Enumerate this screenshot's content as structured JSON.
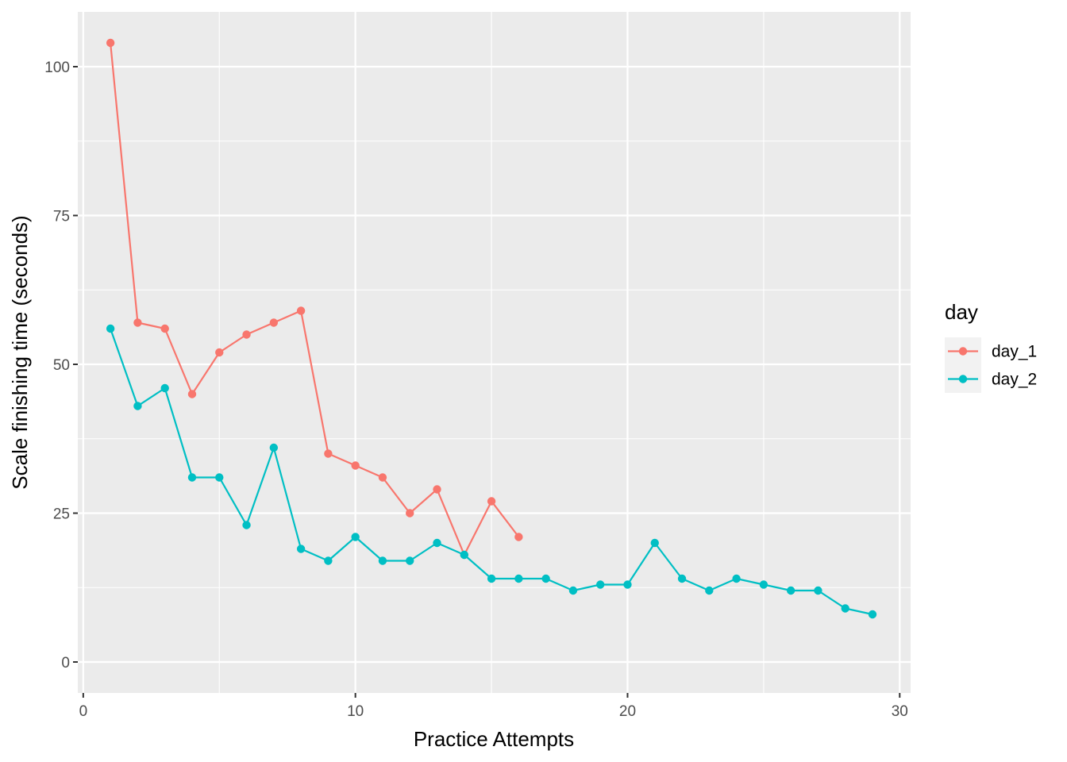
{
  "chart_data": {
    "type": "line",
    "title": "",
    "xlabel": "Practice Attempts",
    "ylabel": "Scale finishing time (seconds)",
    "xlim": [
      -0.2,
      30.4
    ],
    "ylim": [
      -5.2,
      109.2
    ],
    "x_ticks": [
      0,
      10,
      20,
      30
    ],
    "y_ticks": [
      0,
      25,
      50,
      75,
      100
    ],
    "x_tick_labels": [
      "0",
      "10",
      "20",
      "30"
    ],
    "y_tick_labels": [
      "0",
      "25",
      "50",
      "75",
      "100"
    ],
    "grid": true,
    "legend": {
      "title": "day",
      "position": "right"
    },
    "series": [
      {
        "name": "day_1",
        "color": "#F8766D",
        "x": [
          1,
          2,
          3,
          4,
          5,
          6,
          7,
          8,
          9,
          10,
          11,
          12,
          13,
          14,
          15,
          16
        ],
        "y": [
          104,
          57,
          56,
          45,
          52,
          55,
          57,
          59,
          35,
          33,
          31,
          25,
          29,
          18,
          27,
          21
        ]
      },
      {
        "name": "day_2",
        "color": "#00BFC4",
        "x": [
          1,
          2,
          3,
          4,
          5,
          6,
          7,
          8,
          9,
          10,
          11,
          12,
          13,
          14,
          15,
          16,
          17,
          18,
          19,
          20,
          21,
          22,
          23,
          24,
          25,
          26,
          27,
          28,
          29
        ],
        "y": [
          56,
          43,
          46,
          31,
          31,
          23,
          36,
          19,
          17,
          21,
          17,
          17,
          20,
          18,
          14,
          14,
          14,
          12,
          13,
          13,
          20,
          14,
          12,
          14,
          13,
          12,
          12,
          9,
          8
        ]
      }
    ],
    "colors": {
      "panel_background": "#EBEBEB",
      "grid": "#FFFFFF",
      "legend_key_background": "#F2F2F2"
    }
  }
}
